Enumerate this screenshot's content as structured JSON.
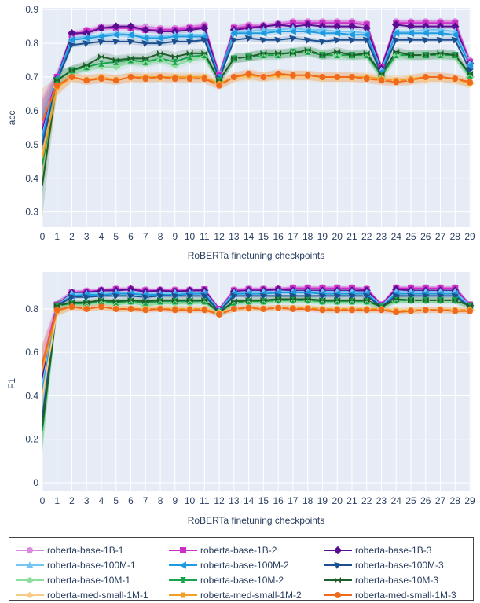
{
  "colors": {
    "plot_bg": "#e5ecf6",
    "grid": "#ffffff"
  },
  "series_styles": [
    {
      "name": "roberta-base-1B-1",
      "color": "#d98be0",
      "marker": "circle"
    },
    {
      "name": "roberta-base-1B-2",
      "color": "#cc2fc7",
      "marker": "square"
    },
    {
      "name": "roberta-base-1B-3",
      "color": "#5a0d91",
      "marker": "diamond"
    },
    {
      "name": "roberta-base-100M-1",
      "color": "#74c5f2",
      "marker": "triangle-up"
    },
    {
      "name": "roberta-base-100M-2",
      "color": "#1e9ae0",
      "marker": "triangle-left"
    },
    {
      "name": "roberta-base-100M-3",
      "color": "#1c4f8f",
      "marker": "triangle-down-left"
    },
    {
      "name": "roberta-base-10M-1",
      "color": "#8fdc9f",
      "marker": "diamond-wide"
    },
    {
      "name": "roberta-base-10M-2",
      "color": "#17a34a",
      "marker": "hourglass"
    },
    {
      "name": "roberta-base-10M-3",
      "color": "#1e5e2a",
      "marker": "bowtie"
    },
    {
      "name": "roberta-med-small-1M-1",
      "color": "#f7c98a",
      "marker": "diamond-wide"
    },
    {
      "name": "roberta-med-small-1M-2",
      "color": "#f2a023",
      "marker": "hexagon"
    },
    {
      "name": "roberta-med-small-1M-3",
      "color": "#f06a1c",
      "marker": "circle"
    }
  ],
  "chart_data": [
    {
      "type": "line",
      "xlabel": "RoBERTa finetuning checkpoints",
      "ylabel": "acc",
      "x": [
        0,
        1,
        2,
        3,
        4,
        5,
        6,
        7,
        8,
        9,
        10,
        11,
        12,
        13,
        14,
        15,
        16,
        17,
        18,
        19,
        20,
        21,
        22,
        23,
        24,
        25,
        26,
        27,
        28,
        29
      ],
      "xticks": [
        "0",
        "1",
        "2",
        "3",
        "4",
        "5",
        "6",
        "7",
        "8",
        "9",
        "10",
        "11",
        "12",
        "13",
        "14",
        "15",
        "16",
        "17",
        "18",
        "19",
        "20",
        "21",
        "22",
        "23",
        "24",
        "25",
        "26",
        "27",
        "28",
        "29"
      ],
      "ylim": [
        0.255,
        0.905
      ],
      "yticks": [
        0.3,
        0.4,
        0.5,
        0.6,
        0.7,
        0.8,
        0.9
      ],
      "ytick_labels": [
        "0.3",
        "0.4",
        "0.5",
        "0.6",
        "0.7",
        "0.8",
        "0.9"
      ],
      "series": [
        {
          "name": "roberta-base-1B-1",
          "values": [
            0.56,
            0.7,
            0.83,
            0.84,
            0.85,
            0.85,
            0.85,
            0.85,
            0.845,
            0.845,
            0.85,
            0.855,
            0.71,
            0.85,
            0.855,
            0.855,
            0.86,
            0.865,
            0.865,
            0.865,
            0.865,
            0.865,
            0.86,
            0.73,
            0.865,
            0.865,
            0.865,
            0.865,
            0.865,
            0.75
          ]
        },
        {
          "name": "roberta-base-1B-2",
          "values": [
            0.55,
            0.7,
            0.825,
            0.835,
            0.845,
            0.845,
            0.845,
            0.84,
            0.84,
            0.84,
            0.845,
            0.85,
            0.705,
            0.845,
            0.85,
            0.85,
            0.855,
            0.86,
            0.86,
            0.86,
            0.86,
            0.86,
            0.855,
            0.73,
            0.86,
            0.86,
            0.86,
            0.86,
            0.86,
            0.745
          ]
        },
        {
          "name": "roberta-base-1B-3",
          "values": [
            0.54,
            0.695,
            0.83,
            0.83,
            0.845,
            0.85,
            0.85,
            0.84,
            0.835,
            0.835,
            0.84,
            0.845,
            0.7,
            0.84,
            0.845,
            0.85,
            0.855,
            0.85,
            0.855,
            0.85,
            0.85,
            0.85,
            0.845,
            0.725,
            0.855,
            0.85,
            0.85,
            0.85,
            0.85,
            0.74
          ]
        },
        {
          "name": "roberta-base-100M-1",
          "values": [
            0.53,
            0.695,
            0.815,
            0.82,
            0.825,
            0.83,
            0.825,
            0.82,
            0.82,
            0.825,
            0.825,
            0.825,
            0.7,
            0.835,
            0.835,
            0.84,
            0.84,
            0.845,
            0.84,
            0.84,
            0.835,
            0.835,
            0.83,
            0.72,
            0.835,
            0.835,
            0.84,
            0.84,
            0.835,
            0.74
          ]
        },
        {
          "name": "roberta-base-100M-2",
          "values": [
            0.52,
            0.695,
            0.81,
            0.815,
            0.82,
            0.825,
            0.825,
            0.815,
            0.815,
            0.82,
            0.82,
            0.82,
            0.7,
            0.83,
            0.83,
            0.83,
            0.835,
            0.835,
            0.835,
            0.83,
            0.83,
            0.825,
            0.825,
            0.715,
            0.83,
            0.83,
            0.83,
            0.83,
            0.825,
            0.735
          ]
        },
        {
          "name": "roberta-base-100M-3",
          "values": [
            0.5,
            0.69,
            0.795,
            0.8,
            0.805,
            0.805,
            0.805,
            0.8,
            0.8,
            0.805,
            0.805,
            0.81,
            0.695,
            0.81,
            0.815,
            0.81,
            0.81,
            0.815,
            0.81,
            0.805,
            0.81,
            0.81,
            0.81,
            0.71,
            0.81,
            0.81,
            0.81,
            0.81,
            0.81,
            0.72
          ]
        },
        {
          "name": "roberta-base-10M-1",
          "values": [
            0.45,
            0.69,
            0.715,
            0.725,
            0.73,
            0.73,
            0.745,
            0.74,
            0.75,
            0.735,
            0.75,
            0.76,
            0.69,
            0.755,
            0.76,
            0.765,
            0.765,
            0.77,
            0.775,
            0.77,
            0.765,
            0.76,
            0.765,
            0.7,
            0.765,
            0.76,
            0.765,
            0.765,
            0.76,
            0.7
          ]
        },
        {
          "name": "roberta-base-10M-2",
          "values": [
            0.44,
            0.69,
            0.72,
            0.73,
            0.74,
            0.745,
            0.75,
            0.745,
            0.755,
            0.745,
            0.76,
            0.765,
            0.69,
            0.755,
            0.76,
            0.765,
            0.765,
            0.775,
            0.775,
            0.765,
            0.765,
            0.765,
            0.765,
            0.705,
            0.765,
            0.765,
            0.765,
            0.765,
            0.765,
            0.705
          ]
        },
        {
          "name": "roberta-base-10M-3",
          "values": [
            0.38,
            0.69,
            0.72,
            0.735,
            0.76,
            0.75,
            0.755,
            0.755,
            0.77,
            0.76,
            0.77,
            0.77,
            0.69,
            0.755,
            0.76,
            0.77,
            0.77,
            0.77,
            0.78,
            0.765,
            0.775,
            0.765,
            0.77,
            0.71,
            0.775,
            0.765,
            0.765,
            0.77,
            0.765,
            0.71
          ]
        },
        {
          "name": "roberta-med-small-1M-1",
          "values": [
            0.47,
            0.67,
            0.695,
            0.695,
            0.695,
            0.695,
            0.695,
            0.695,
            0.695,
            0.695,
            0.695,
            0.695,
            0.68,
            0.695,
            0.7,
            0.7,
            0.7,
            0.7,
            0.7,
            0.695,
            0.695,
            0.695,
            0.695,
            0.69,
            0.69,
            0.69,
            0.69,
            0.695,
            0.69,
            0.68
          ]
        },
        {
          "name": "roberta-med-small-1M-2",
          "values": [
            0.46,
            0.67,
            0.7,
            0.69,
            0.7,
            0.69,
            0.7,
            0.7,
            0.7,
            0.7,
            0.7,
            0.7,
            0.68,
            0.7,
            0.705,
            0.7,
            0.705,
            0.705,
            0.705,
            0.7,
            0.7,
            0.7,
            0.7,
            0.695,
            0.69,
            0.695,
            0.7,
            0.7,
            0.695,
            0.68
          ]
        },
        {
          "name": "roberta-med-small-1M-3",
          "values": [
            0.57,
            0.675,
            0.7,
            0.69,
            0.695,
            0.69,
            0.7,
            0.695,
            0.7,
            0.695,
            0.695,
            0.695,
            0.675,
            0.7,
            0.71,
            0.7,
            0.71,
            0.705,
            0.705,
            0.7,
            0.7,
            0.7,
            0.695,
            0.69,
            0.685,
            0.69,
            0.7,
            0.7,
            0.695,
            0.685
          ]
        }
      ]
    },
    {
      "type": "line",
      "xlabel": "RoBERTa finetuning checkpoints",
      "ylabel": "F1",
      "x": [
        0,
        1,
        2,
        3,
        4,
        5,
        6,
        7,
        8,
        9,
        10,
        11,
        12,
        13,
        14,
        15,
        16,
        17,
        18,
        19,
        20,
        21,
        22,
        23,
        24,
        25,
        26,
        27,
        28,
        29
      ],
      "xticks": [
        "0",
        "1",
        "2",
        "3",
        "4",
        "5",
        "6",
        "7",
        "8",
        "9",
        "10",
        "11",
        "12",
        "13",
        "14",
        "15",
        "16",
        "17",
        "18",
        "19",
        "20",
        "21",
        "22",
        "23",
        "24",
        "25",
        "26",
        "27",
        "28",
        "29"
      ],
      "ylim": [
        -0.04,
        0.97
      ],
      "yticks": [
        0,
        0.2,
        0.4,
        0.6,
        0.8
      ],
      "ytick_labels": [
        "0",
        "0.2",
        "0.4",
        "0.6",
        "0.8"
      ],
      "series": [
        {
          "name": "roberta-base-1B-1",
          "values": [
            0.55,
            0.82,
            0.88,
            0.885,
            0.89,
            0.895,
            0.895,
            0.89,
            0.89,
            0.89,
            0.89,
            0.89,
            0.8,
            0.89,
            0.895,
            0.895,
            0.895,
            0.9,
            0.9,
            0.9,
            0.9,
            0.9,
            0.895,
            0.82,
            0.9,
            0.9,
            0.9,
            0.9,
            0.9,
            0.82
          ]
        },
        {
          "name": "roberta-base-1B-2",
          "values": [
            0.54,
            0.82,
            0.875,
            0.88,
            0.885,
            0.89,
            0.89,
            0.885,
            0.885,
            0.885,
            0.885,
            0.89,
            0.8,
            0.885,
            0.89,
            0.89,
            0.89,
            0.895,
            0.895,
            0.895,
            0.895,
            0.895,
            0.89,
            0.82,
            0.895,
            0.895,
            0.895,
            0.895,
            0.895,
            0.82
          ]
        },
        {
          "name": "roberta-base-1B-3",
          "values": [
            0.48,
            0.815,
            0.875,
            0.875,
            0.885,
            0.885,
            0.89,
            0.88,
            0.885,
            0.88,
            0.885,
            0.885,
            0.795,
            0.88,
            0.885,
            0.885,
            0.89,
            0.885,
            0.885,
            0.885,
            0.885,
            0.885,
            0.885,
            0.815,
            0.89,
            0.885,
            0.885,
            0.885,
            0.885,
            0.815
          ]
        },
        {
          "name": "roberta-base-100M-1",
          "values": [
            0.45,
            0.815,
            0.87,
            0.87,
            0.875,
            0.875,
            0.875,
            0.87,
            0.87,
            0.875,
            0.875,
            0.875,
            0.795,
            0.875,
            0.88,
            0.88,
            0.88,
            0.88,
            0.88,
            0.88,
            0.88,
            0.88,
            0.875,
            0.815,
            0.88,
            0.88,
            0.88,
            0.88,
            0.88,
            0.815
          ]
        },
        {
          "name": "roberta-base-100M-2",
          "values": [
            0.42,
            0.815,
            0.86,
            0.865,
            0.865,
            0.87,
            0.87,
            0.865,
            0.865,
            0.865,
            0.87,
            0.87,
            0.79,
            0.87,
            0.87,
            0.87,
            0.875,
            0.875,
            0.875,
            0.87,
            0.87,
            0.87,
            0.87,
            0.81,
            0.87,
            0.87,
            0.87,
            0.87,
            0.87,
            0.81
          ]
        },
        {
          "name": "roberta-base-100M-3",
          "values": [
            0.3,
            0.815,
            0.855,
            0.855,
            0.86,
            0.86,
            0.86,
            0.855,
            0.86,
            0.86,
            0.86,
            0.86,
            0.79,
            0.86,
            0.86,
            0.86,
            0.86,
            0.86,
            0.86,
            0.86,
            0.86,
            0.86,
            0.86,
            0.81,
            0.86,
            0.86,
            0.86,
            0.86,
            0.86,
            0.81
          ]
        },
        {
          "name": "roberta-base-10M-1",
          "values": [
            0.22,
            0.815,
            0.82,
            0.82,
            0.83,
            0.82,
            0.83,
            0.815,
            0.825,
            0.825,
            0.825,
            0.83,
            0.78,
            0.83,
            0.83,
            0.83,
            0.835,
            0.835,
            0.835,
            0.83,
            0.83,
            0.83,
            0.83,
            0.805,
            0.835,
            0.835,
            0.835,
            0.835,
            0.835,
            0.81
          ]
        },
        {
          "name": "roberta-base-10M-2",
          "values": [
            0.24,
            0.815,
            0.825,
            0.825,
            0.835,
            0.83,
            0.835,
            0.83,
            0.835,
            0.835,
            0.835,
            0.835,
            0.785,
            0.83,
            0.835,
            0.835,
            0.84,
            0.84,
            0.84,
            0.835,
            0.835,
            0.835,
            0.835,
            0.81,
            0.84,
            0.84,
            0.84,
            0.84,
            0.84,
            0.815
          ]
        },
        {
          "name": "roberta-base-10M-3",
          "values": [
            0.26,
            0.815,
            0.83,
            0.83,
            0.84,
            0.835,
            0.84,
            0.835,
            0.84,
            0.84,
            0.84,
            0.84,
            0.785,
            0.835,
            0.84,
            0.84,
            0.845,
            0.845,
            0.845,
            0.84,
            0.84,
            0.84,
            0.84,
            0.81,
            0.845,
            0.84,
            0.84,
            0.84,
            0.84,
            0.815
          ]
        },
        {
          "name": "roberta-med-small-1M-1",
          "values": [
            0.4,
            0.79,
            0.81,
            0.805,
            0.81,
            0.805,
            0.805,
            0.8,
            0.805,
            0.8,
            0.8,
            0.8,
            0.785,
            0.8,
            0.8,
            0.805,
            0.805,
            0.805,
            0.805,
            0.8,
            0.8,
            0.8,
            0.8,
            0.8,
            0.795,
            0.795,
            0.795,
            0.8,
            0.795,
            0.795
          ]
        },
        {
          "name": "roberta-med-small-1M-2",
          "values": [
            0.52,
            0.79,
            0.81,
            0.8,
            0.81,
            0.8,
            0.8,
            0.8,
            0.8,
            0.8,
            0.8,
            0.8,
            0.78,
            0.8,
            0.805,
            0.8,
            0.805,
            0.805,
            0.805,
            0.8,
            0.8,
            0.8,
            0.8,
            0.8,
            0.79,
            0.795,
            0.795,
            0.795,
            0.795,
            0.795
          ]
        },
        {
          "name": "roberta-med-small-1M-3",
          "values": [
            0.55,
            0.795,
            0.81,
            0.8,
            0.81,
            0.8,
            0.8,
            0.795,
            0.8,
            0.795,
            0.795,
            0.795,
            0.775,
            0.8,
            0.805,
            0.8,
            0.805,
            0.8,
            0.8,
            0.795,
            0.795,
            0.795,
            0.795,
            0.795,
            0.785,
            0.79,
            0.795,
            0.795,
            0.79,
            0.79
          ]
        }
      ]
    }
  ]
}
